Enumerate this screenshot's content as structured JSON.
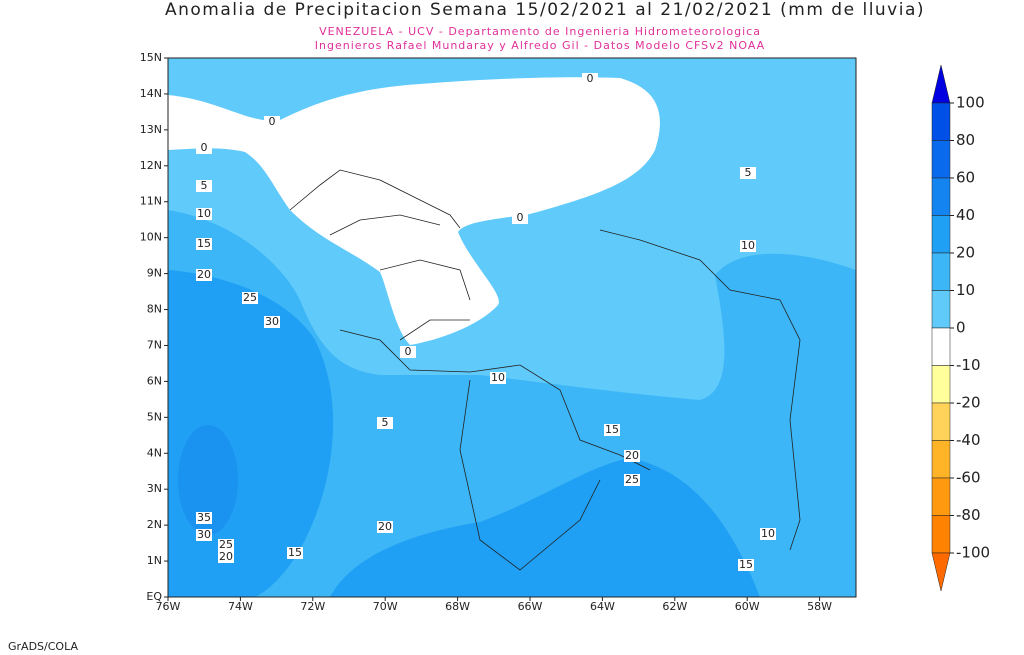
{
  "header": {
    "title": "Anomalia de Precipitacion Semana 15/02/2021 al 21/02/2021 (mm de lluvia)",
    "subtitle_1": "VENEZUELA - UCV - Departamento de Ingenieria Hidrometeorologica",
    "subtitle_2": "Ingenieros Rafael Mundaray y Alfredo Gil - Datos Modelo CFSv2 NOAA"
  },
  "map": {
    "lat_labels": [
      "15N",
      "14N",
      "13N",
      "12N",
      "11N",
      "10N",
      "9N",
      "8N",
      "7N",
      "6N",
      "5N",
      "4N",
      "3N",
      "2N",
      "1N",
      "EQ"
    ],
    "lon_labels": [
      "76W",
      "74W",
      "72W",
      "70W",
      "68W",
      "66W",
      "64W",
      "62W",
      "60W",
      "58W"
    ],
    "contour_labels": [
      0,
      0,
      0,
      5,
      10,
      15,
      20,
      25,
      30,
      0,
      0,
      5,
      10,
      10,
      5,
      15,
      20,
      25,
      35,
      30,
      25,
      20,
      15,
      20,
      10,
      15
    ]
  },
  "colorbar": {
    "levels": [
      100,
      80,
      60,
      40,
      20,
      10,
      0,
      -10,
      -20,
      -40,
      -60,
      -80,
      -100
    ],
    "colors": [
      "#0000e0",
      "#0050e8",
      "#0a6aee",
      "#1484f0",
      "#20a0f4",
      "#3cb6f6",
      "#60cafa",
      "#ffffff",
      "#ffff9c",
      "#ffd25a",
      "#ffb428",
      "#ff9a10",
      "#ff8200",
      "#ff6a00"
    ]
  },
  "footer": "GrADS/COLA"
}
